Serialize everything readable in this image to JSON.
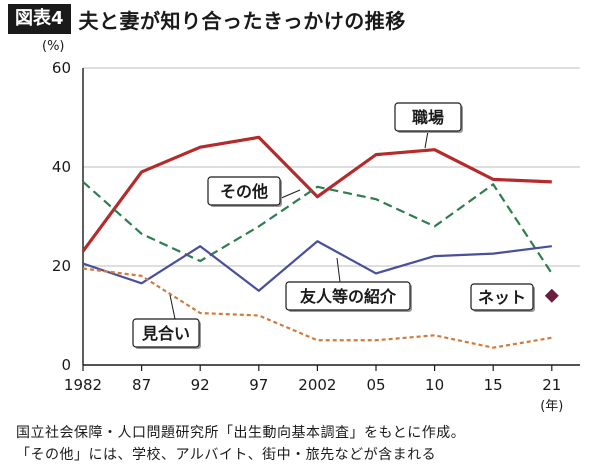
{
  "header": {
    "badge": "図表4",
    "title": "夫と妻が知り合ったきっかけの推移"
  },
  "footer": {
    "source": "国立社会保障・人口問題研究所「出生動向基本調査」をもとに作成。",
    "note": "「その他」には、学校、アルバイト、街中・旅先などが含まれる"
  },
  "chart_data": {
    "type": "line",
    "title": "夫と妻が知り合ったきっかけの推移",
    "y_unit": "(%)",
    "x_unit": "(年)",
    "x_tick_labels": [
      "1982",
      "87",
      "92",
      "97",
      "2002",
      "05",
      "10",
      "15",
      "21"
    ],
    "ylim": [
      0,
      60
    ],
    "y_ticks": [
      0,
      20,
      40,
      60
    ],
    "grid": "horizontal",
    "series": [
      {
        "name": "職場",
        "color": "#b52a2a",
        "style": "solid",
        "values": [
          23,
          39,
          44,
          46,
          34,
          42.5,
          43.5,
          37.5,
          37
        ]
      },
      {
        "name": "その他",
        "color": "#2e7d4f",
        "style": "dashed",
        "values": [
          37,
          26.5,
          21,
          28,
          36,
          33.5,
          28,
          36.5,
          18.5
        ]
      },
      {
        "name": "友人等の紹介",
        "color": "#4a4f9c",
        "style": "solid",
        "values": [
          20.5,
          16.5,
          24,
          15,
          25,
          18.5,
          22,
          22.5,
          24
        ]
      },
      {
        "name": "見合い",
        "color": "#d07a3c",
        "style": "dotted",
        "values": [
          19.5,
          18,
          10.5,
          10,
          5,
          5,
          6,
          3.5,
          5.5
        ]
      },
      {
        "name": "ネット",
        "color": "#6b1f3f",
        "style": "point",
        "values": [
          null,
          null,
          null,
          null,
          null,
          null,
          null,
          null,
          14
        ]
      }
    ]
  }
}
